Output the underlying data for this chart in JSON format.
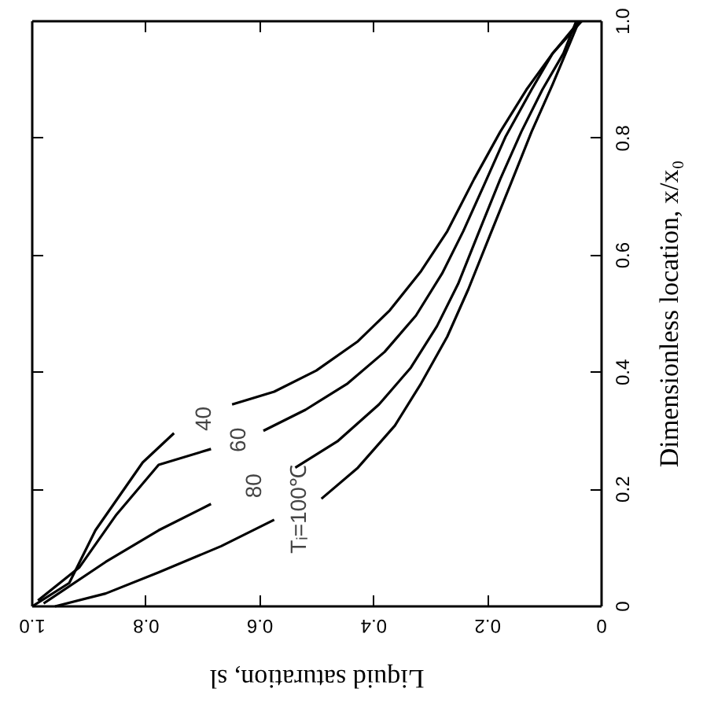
{
  "chart_data": {
    "type": "line",
    "xlabel": "Liquid saturation, sl",
    "ylabel": "Dimensionless location, x/x₀",
    "xlim": [
      1,
      0
    ],
    "ylim": [
      0,
      1
    ],
    "xticks": [
      {
        "value": 1,
        "label": "1.0"
      },
      0.8,
      0.6,
      0.4,
      0.2,
      0
    ],
    "yticks": [
      0,
      0.2,
      0.4,
      0.6,
      0.8,
      {
        "value": 1,
        "label": "1.0"
      }
    ],
    "grid": false,
    "marker": "none",
    "line_style": "solid",
    "series": [
      {
        "color": "#000000",
        "x": [
          1,
          0.935,
          0.889,
          0.806,
          0.751,
          0.7,
          0.649,
          0.575,
          0.501,
          0.428,
          0.372,
          0.317,
          0.271,
          0.224,
          0.178,
          0.132,
          0.086,
          0.035
        ],
        "values": [
          0,
          0.04,
          0.13,
          0.246,
          0.296,
          null,
          0.345,
          0.367,
          0.403,
          0.453,
          0.506,
          0.573,
          0.641,
          0.73,
          0.811,
          0.883,
          0.945,
          1.0
        ]
      },
      {
        "color": "#000000",
        "x": [
          0.99,
          0.917,
          0.852,
          0.778,
          0.686,
          0.64,
          0.594,
          0.52,
          0.446,
          0.381,
          0.326,
          0.28,
          0.243,
          0.206,
          0.169,
          0.123,
          0.086,
          0.04
        ],
        "values": [
          0.01,
          0.067,
          0.157,
          0.242,
          0.269,
          null,
          0.3,
          0.336,
          0.381,
          0.435,
          0.497,
          0.569,
          0.641,
          0.721,
          0.802,
          0.883,
          0.945,
          0.999
        ]
      },
      {
        "color": "#000000",
        "x": [
          0.98,
          0.871,
          0.778,
          0.686,
          0.61,
          0.538,
          0.464,
          0.391,
          0.335,
          0.289,
          0.252,
          0.215,
          0.178,
          0.141,
          0.104,
          0.067,
          0.045
        ],
        "values": [
          0.005,
          0.076,
          0.13,
          0.175,
          null,
          0.237,
          0.282,
          0.345,
          0.408,
          0.479,
          0.551,
          0.641,
          0.73,
          0.811,
          0.883,
          0.945,
          0.999
        ]
      },
      {
        "color": "#000000",
        "x": [
          0.96,
          0.871,
          0.778,
          0.668,
          0.575,
          0.53,
          0.492,
          0.428,
          0.363,
          0.317,
          0.271,
          0.234,
          0.197,
          0.16,
          0.123,
          0.086,
          0.055,
          0.04
        ],
        "values": [
          0,
          0.022,
          0.058,
          0.103,
          0.148,
          null,
          0.184,
          0.237,
          0.309,
          0.381,
          0.461,
          0.542,
          0.632,
          0.721,
          0.811,
          0.892,
          0.964,
          0.999
        ]
      }
    ],
    "annotations": [
      {
        "text": "40",
        "x": 0.751,
        "y": 0.296
      },
      {
        "text": "60",
        "x": 0.686,
        "y": 0.269
      },
      {
        "text": "80",
        "x": 0.686,
        "y": 0.175
      },
      {
        "text": "Tᵢ=100℃",
        "x": 0.575,
        "y": 0.148
      }
    ]
  }
}
